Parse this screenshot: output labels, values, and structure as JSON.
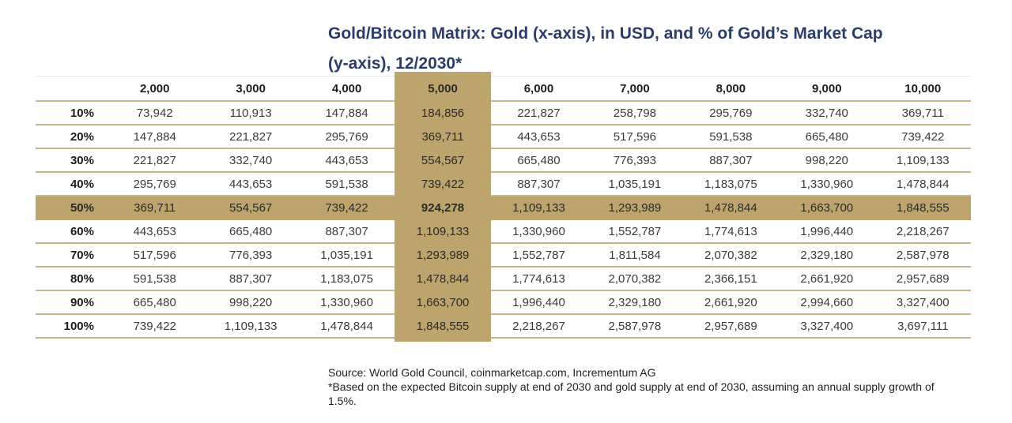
{
  "title": {
    "line1": "Gold/Bitcoin Matrix: Gold (x-axis), in USD, and % of Gold’s Market Cap",
    "line2": "(y-axis), 12/2030*"
  },
  "table": {
    "corner_label": "",
    "column_headers": [
      "2,000",
      "3,000",
      "4,000",
      "5,000",
      "6,000",
      "7,000",
      "8,000",
      "9,000",
      "10,000"
    ],
    "highlight_column_header": "5,000",
    "highlight_row_label": "50%",
    "highlight_cell_value": "924,278",
    "rows": [
      {
        "label": "10%",
        "values": [
          "73,942",
          "110,913",
          "147,884",
          "184,856",
          "221,827",
          "258,798",
          "295,769",
          "332,740",
          "369,711"
        ]
      },
      {
        "label": "20%",
        "values": [
          "147,884",
          "221,827",
          "295,769",
          "369,711",
          "443,653",
          "517,596",
          "591,538",
          "665,480",
          "739,422"
        ]
      },
      {
        "label": "30%",
        "values": [
          "221,827",
          "332,740",
          "443,653",
          "554,567",
          "665,480",
          "776,393",
          "887,307",
          "998,220",
          "1,109,133"
        ]
      },
      {
        "label": "40%",
        "values": [
          "295,769",
          "443,653",
          "591,538",
          "739,422",
          "887,307",
          "1,035,191",
          "1,183,075",
          "1,330,960",
          "1,478,844"
        ]
      },
      {
        "label": "50%",
        "values": [
          "369,711",
          "554,567",
          "739,422",
          "924,278",
          "1,109,133",
          "1,293,989",
          "1,478,844",
          "1,663,700",
          "1,848,555"
        ]
      },
      {
        "label": "60%",
        "values": [
          "443,653",
          "665,480",
          "887,307",
          "1,109,133",
          "1,330,960",
          "1,552,787",
          "1,774,613",
          "1,996,440",
          "2,218,267"
        ]
      },
      {
        "label": "70%",
        "values": [
          "517,596",
          "776,393",
          "1,035,191",
          "1,293,989",
          "1,552,787",
          "1,811,584",
          "2,070,382",
          "2,329,180",
          "2,587,978"
        ]
      },
      {
        "label": "80%",
        "values": [
          "591,538",
          "887,307",
          "1,183,075",
          "1,478,844",
          "1,774,613",
          "2,070,382",
          "2,366,151",
          "2,661,920",
          "2,957,689"
        ]
      },
      {
        "label": "90%",
        "values": [
          "665,480",
          "998,220",
          "1,330,960",
          "1,663,700",
          "1,996,440",
          "2,329,180",
          "2,661,920",
          "2,994,660",
          "3,327,400"
        ]
      },
      {
        "label": "100%",
        "values": [
          "739,422",
          "1,109,133",
          "1,478,844",
          "1,848,555",
          "2,218,267",
          "2,587,978",
          "2,957,689",
          "3,327,400",
          "3,697,111"
        ]
      }
    ]
  },
  "footer": {
    "source": "Source: World Gold Council, coinmarketcap.com, Incrementum AG",
    "note": "*Based on the expected Bitcoin supply at end of 2030 and gold supply at end of 2030, assuming an annual supply growth of 1.5%."
  },
  "colors": {
    "highlight_gold": "#BCA46C",
    "line_gold": "#C7B687",
    "title_navy": "#2B3C6E"
  },
  "chart_data": {
    "type": "table",
    "title": "Gold/Bitcoin Matrix: Gold (x-axis), in USD, and % of Gold's Market Cap (y-axis), 12/2030*",
    "x_categories_gold_price_usd": [
      2000,
      3000,
      4000,
      5000,
      6000,
      7000,
      8000,
      9000,
      10000
    ],
    "y_categories_pct_of_gold_market_cap": [
      "10%",
      "20%",
      "30%",
      "40%",
      "50%",
      "60%",
      "70%",
      "80%",
      "90%",
      "100%"
    ],
    "values": [
      [
        73942,
        110913,
        147884,
        184856,
        221827,
        258798,
        295769,
        332740,
        369711
      ],
      [
        147884,
        221827,
        295769,
        369711,
        443653,
        517596,
        591538,
        665480,
        739422
      ],
      [
        221827,
        332740,
        443653,
        554567,
        665480,
        776393,
        887307,
        998220,
        1109133
      ],
      [
        295769,
        443653,
        591538,
        739422,
        887307,
        1035191,
        1183075,
        1330960,
        1478844
      ],
      [
        369711,
        554567,
        739422,
        924278,
        1109133,
        1293989,
        1478844,
        1663700,
        1848555
      ],
      [
        443653,
        665480,
        887307,
        1109133,
        1330960,
        1552787,
        1774613,
        1996440,
        2218267
      ],
      [
        517596,
        776393,
        1035191,
        1293989,
        1552787,
        1811584,
        2070382,
        2329180,
        2587978
      ],
      [
        591538,
        887307,
        1183075,
        1478844,
        1774613,
        2070382,
        2366151,
        2661920,
        2957689
      ],
      [
        665480,
        998220,
        1330960,
        1663700,
        1996440,
        2329180,
        2661920,
        2994660,
        3327400
      ],
      [
        739422,
        1109133,
        1478844,
        1848555,
        2218267,
        2587978,
        2957689,
        3327400,
        3697111
      ]
    ],
    "highlighted_column": 5000,
    "highlighted_row": "50%",
    "highlighted_cell_value": 924278,
    "legend_position": "none",
    "grid": "horizontal-gold-rules"
  }
}
